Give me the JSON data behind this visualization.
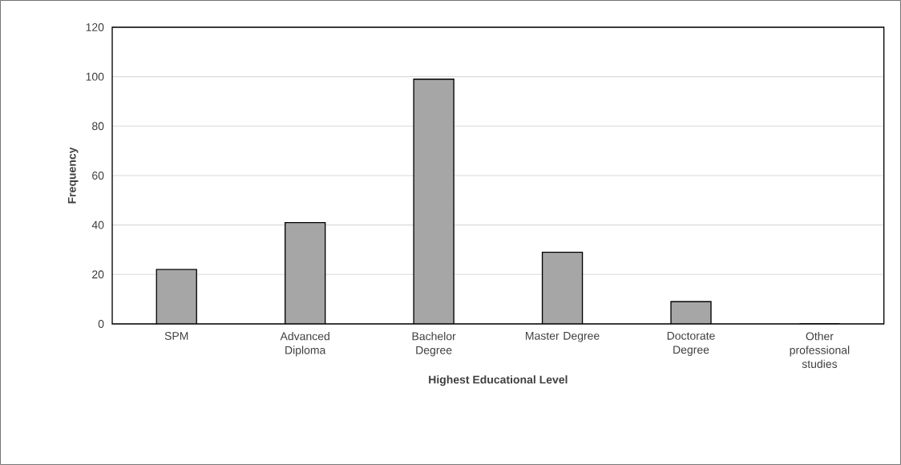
{
  "chart_data": {
    "type": "bar",
    "xlabel": "Highest Educational Level",
    "ylabel": "Frequency",
    "categories": [
      "SPM",
      "Advanced Diploma",
      "Bachelor Degree",
      "Master Degree",
      "Doctorate Degree",
      "Other professional studies"
    ],
    "values": [
      22,
      41,
      99,
      29,
      9,
      0
    ],
    "color": "#a6a6a6",
    "ylim": [
      0,
      120
    ],
    "yticks": [
      0,
      20,
      40,
      60,
      80,
      100,
      120
    ],
    "grid": "y"
  }
}
